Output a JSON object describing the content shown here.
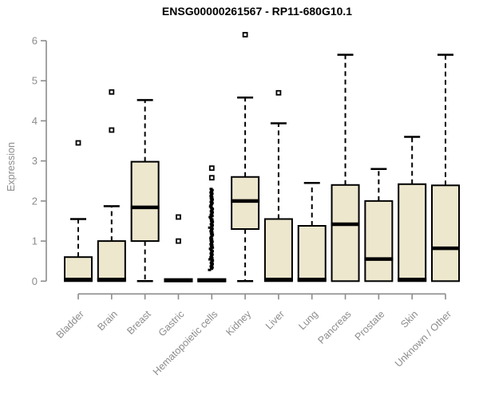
{
  "title": "ENSG00000261567 - RP11-680G10.1",
  "chart_data": {
    "type": "boxplot",
    "title": "ENSG00000261567 - RP11-680G10.1",
    "xlabel": "",
    "ylabel": "Expression",
    "ylim": [
      0,
      6
    ],
    "yticks": [
      0,
      1,
      2,
      3,
      4,
      5,
      6
    ],
    "grid": false,
    "legend": false,
    "categories": [
      "Bladder",
      "Brain",
      "Breast",
      "Gastric",
      "Hematopoietic cells",
      "Kidney",
      "Liver",
      "Lung",
      "Pancreas",
      "Prostate",
      "Skin",
      "Unknown / Other"
    ],
    "series": [
      {
        "name": "Bladder",
        "low": 0,
        "q1": 0,
        "median": 0.04,
        "q3": 0.6,
        "high": 1.55,
        "outliers": [
          3.45
        ]
      },
      {
        "name": "Brain",
        "low": 0,
        "q1": 0,
        "median": 0.04,
        "q3": 1.0,
        "high": 1.87,
        "outliers": [
          4.72,
          3.77
        ]
      },
      {
        "name": "Breast",
        "low": 0,
        "q1": 1.0,
        "median": 1.84,
        "q3": 2.98,
        "high": 4.52,
        "outliers": []
      },
      {
        "name": "Gastric",
        "low": 0,
        "q1": 0,
        "median": 0.02,
        "q3": 0.05,
        "high": 0.05,
        "outliers": [
          1.6,
          1.0
        ]
      },
      {
        "name": "Hematopoietic cells",
        "low": 0,
        "q1": 0,
        "median": 0.02,
        "q3": 0.05,
        "high": 0.05,
        "outliers": [
          2.82,
          2.58
        ],
        "outlier_stack": {
          "min": 0.28,
          "max": 2.3,
          "count": 70
        }
      },
      {
        "name": "Kidney",
        "low": 0,
        "q1": 1.3,
        "median": 2.0,
        "q3": 2.6,
        "high": 4.58,
        "outliers": [
          6.15
        ]
      },
      {
        "name": "Liver",
        "low": 0,
        "q1": 0,
        "median": 0.04,
        "q3": 1.55,
        "high": 3.94,
        "outliers": [
          4.7
        ]
      },
      {
        "name": "Lung",
        "low": 0,
        "q1": 0,
        "median": 0.04,
        "q3": 1.38,
        "high": 2.45,
        "outliers": []
      },
      {
        "name": "Pancreas",
        "low": 0,
        "q1": 0,
        "median": 1.42,
        "q3": 2.4,
        "high": 5.65,
        "outliers": []
      },
      {
        "name": "Prostate",
        "low": 0,
        "q1": 0,
        "median": 0.55,
        "q3": 2.0,
        "high": 2.8,
        "outliers": []
      },
      {
        "name": "Skin",
        "low": 0,
        "q1": 0,
        "median": 0.04,
        "q3": 2.42,
        "high": 3.6,
        "outliers": []
      },
      {
        "name": "Unknown / Other",
        "low": 0,
        "q1": 0,
        "median": 0.82,
        "q3": 2.39,
        "high": 5.65,
        "outliers": []
      }
    ],
    "colors": {
      "box_fill": "#ece7cd",
      "box_stroke": "#000000",
      "median_color": "#000000",
      "whisker_color": "#000000",
      "outlier_color": "#000000",
      "axis_color": "#8c8c8c",
      "tick_label_color": "#8c8c8c",
      "title_color": "#000000",
      "background": "#ffffff"
    }
  }
}
